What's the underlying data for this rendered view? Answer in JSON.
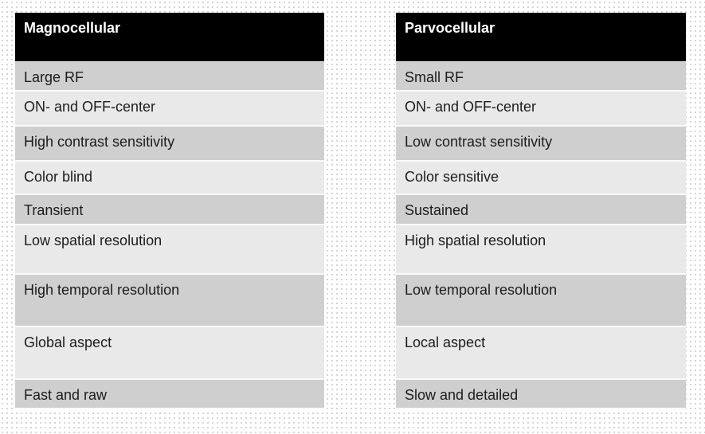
{
  "magnocellular": {
    "header": "Magnocellular",
    "rows": [
      "Large RF",
      "ON- and OFF-center",
      "High contrast sensitivity",
      "Color blind",
      "Transient",
      "Low spatial resolution",
      "High temporal resolution",
      "Global aspect",
      "Fast and raw"
    ]
  },
  "parvocellular": {
    "header": "Parvocellular",
    "rows": [
      "Small RF",
      "ON- and OFF-center",
      "Low contrast sensitivity",
      "Color sensitive",
      "Sustained",
      "High spatial resolution",
      "Low temporal resolution",
      "Local aspect",
      "Slow and detailed"
    ]
  },
  "colors": {
    "header_bg": "#000000",
    "header_text": "#ffffff",
    "row_dark": "#cfcfcf",
    "row_light": "#e9e9e9"
  }
}
